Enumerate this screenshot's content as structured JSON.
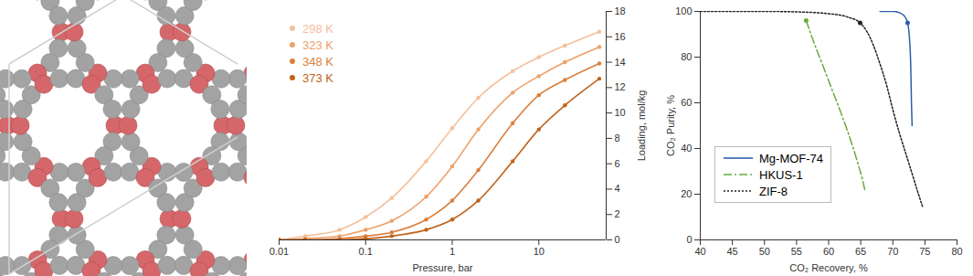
{
  "chart_data": [
    {
      "type": "line",
      "x_label": "Pressure, bar",
      "y_label": "Loading, mol/kg",
      "log": "x",
      "xlim": [
        0.01,
        60
      ],
      "xticks": [
        0.01,
        0.1,
        1,
        10
      ],
      "ylim": [
        0,
        18
      ],
      "yticks": [
        0,
        2,
        4,
        6,
        8,
        10,
        12,
        14,
        16,
        18
      ],
      "legend": "upper left",
      "marker": "circle",
      "x": [
        0.01,
        0.02,
        0.05,
        0.1,
        0.2,
        0.5,
        1,
        2,
        5,
        10,
        20,
        50
      ],
      "series": [
        {
          "name": "298 K",
          "color": "#f4c09c",
          "values": [
            0,
            0.3,
            0.8,
            1.8,
            3.3,
            6.2,
            8.8,
            11.2,
            13.3,
            14.4,
            15.3,
            16.4
          ]
        },
        {
          "name": "323 K",
          "color": "#eda06a",
          "values": [
            0,
            0.1,
            0.3,
            0.8,
            1.5,
            3.4,
            5.8,
            8.7,
            11.6,
            12.9,
            14.0,
            15.2
          ]
        },
        {
          "name": "348 K",
          "color": "#db7f3c",
          "values": [
            0,
            0,
            0.1,
            0.3,
            0.6,
            1.6,
            3.1,
            5.5,
            9.2,
            11.4,
            12.6,
            13.9
          ]
        },
        {
          "name": "373 K",
          "color": "#c0631c",
          "values": [
            0,
            0,
            0,
            0.1,
            0.3,
            0.8,
            1.6,
            3.1,
            6.2,
            8.7,
            10.6,
            12.7
          ]
        }
      ]
    },
    {
      "type": "line",
      "x_label": "CO₂ Recovery, %",
      "y_label": "CO₂ Purity, %",
      "xlim": [
        40,
        80
      ],
      "xticks": [
        40,
        45,
        50,
        55,
        60,
        65,
        70,
        75,
        80
      ],
      "ylim": [
        0,
        100
      ],
      "yticks": [
        0,
        20,
        40,
        60,
        80,
        100
      ],
      "legend": "left",
      "marker": "circle",
      "series": [
        {
          "name": "Mg-MOF-74",
          "color": "#2e5fa8",
          "line_style": "solid",
          "x": [
            68,
            69,
            70,
            71,
            71.8,
            72.3,
            72.6,
            72.8,
            72.9,
            73.0
          ],
          "values": [
            100,
            100,
            100,
            99.5,
            98,
            95,
            88,
            75,
            60,
            50
          ],
          "highlight": {
            "x": 72.3,
            "y": 95
          }
        },
        {
          "name": "HKUS-1",
          "color": "#6aaa3c",
          "line_style": "dashdot",
          "x": [
            56.5,
            57.5,
            59,
            60.5,
            62,
            63.5,
            64.5,
            65.3,
            65.7
          ],
          "values": [
            96,
            88,
            77,
            66,
            55,
            43,
            34,
            26,
            21
          ],
          "highlight": {
            "x": 56.5,
            "y": 96
          }
        },
        {
          "name": "ZIF-8",
          "color": "#222222",
          "line_style": "dotted",
          "x": [
            40,
            50,
            55,
            60,
            63,
            64.9,
            66,
            67,
            68,
            69,
            70,
            71,
            72,
            73,
            74,
            74.7
          ],
          "values": [
            100,
            100,
            99.8,
            99,
            97.5,
            95,
            91,
            85,
            77,
            68,
            57,
            47,
            38,
            29,
            20,
            14
          ],
          "highlight": {
            "x": 64.9,
            "y": 95
          }
        }
      ]
    }
  ]
}
